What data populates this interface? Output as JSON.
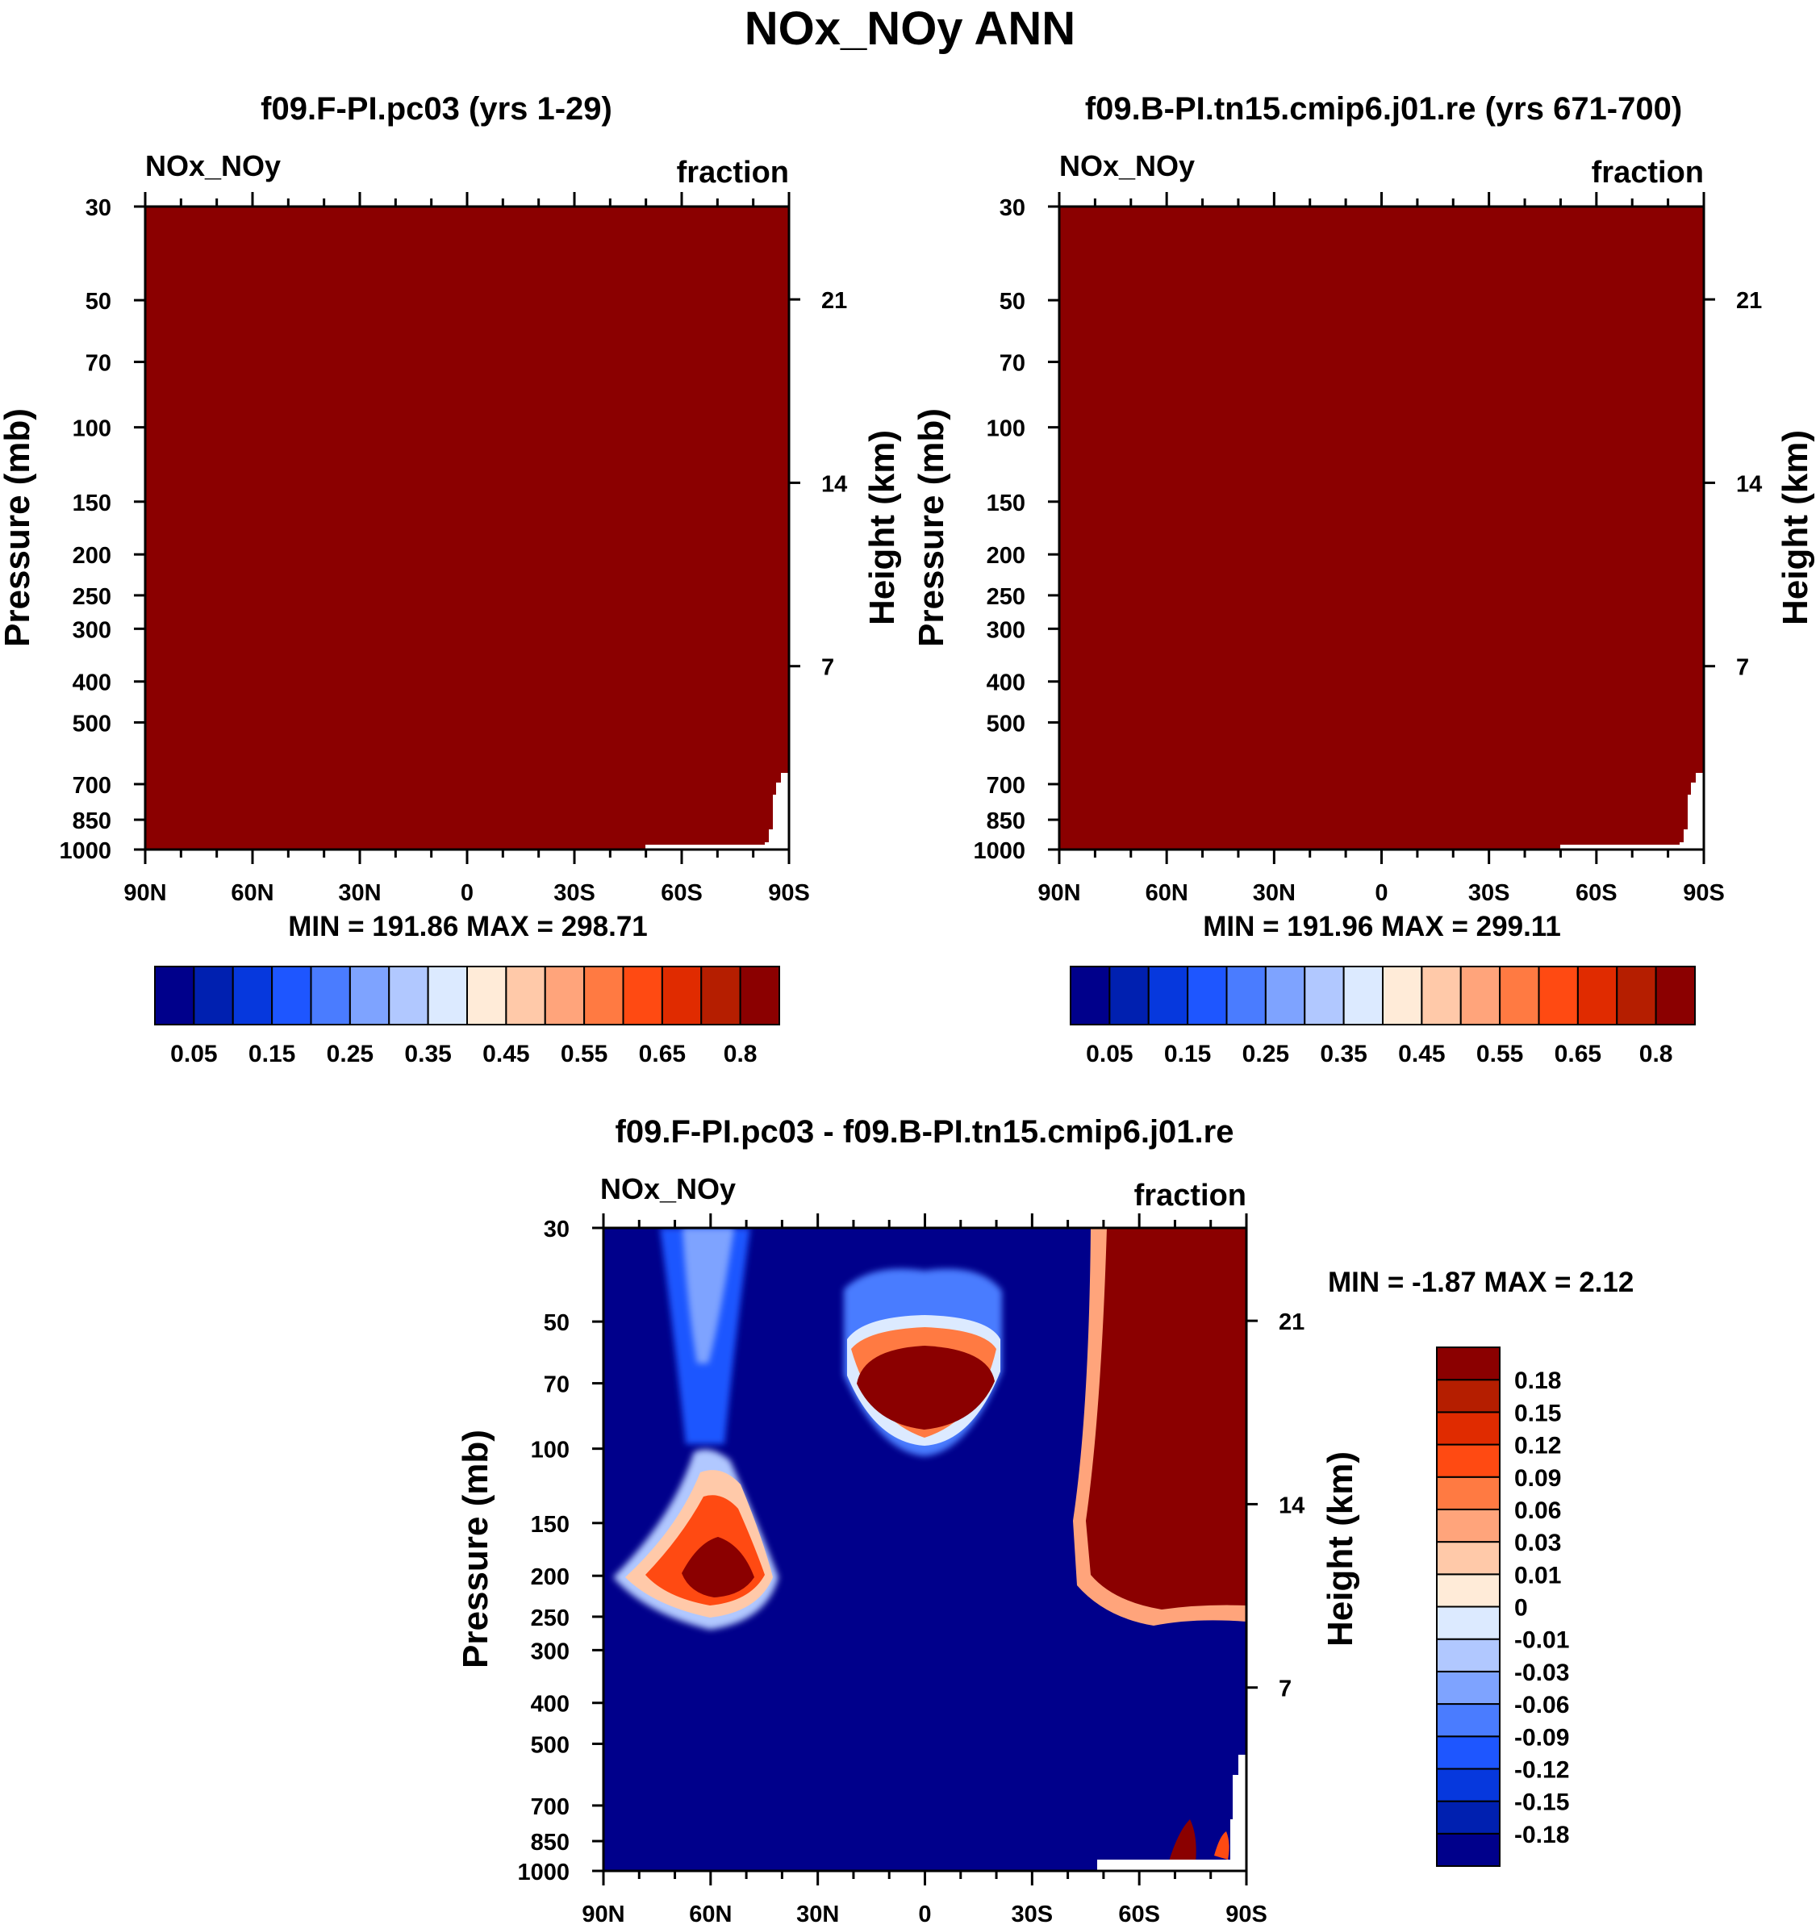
{
  "page_title": "NOx_NOy ANN",
  "colors": {
    "frame": "#000000",
    "background": "#ffffff",
    "dark_red": "#8b0000",
    "dark_blue": "#00008b"
  },
  "chart_data": [
    {
      "type": "heatmap",
      "id": "panel1",
      "title": "f09.F-PI.pc03 (yrs 1-29)",
      "left_label": "NOx_NOy",
      "right_label": "fraction",
      "ylabel": "Pressure (mb)",
      "y2label": "Height (km)",
      "x_ticks": [
        "90N",
        "60N",
        "30N",
        "0",
        "30S",
        "60S",
        "90S"
      ],
      "x_values": [
        90,
        60,
        30,
        0,
        -30,
        -60,
        -90
      ],
      "y_ticks": [
        30,
        50,
        70,
        100,
        150,
        200,
        250,
        300,
        400,
        500,
        700,
        850,
        1000
      ],
      "ylim": [
        1000,
        30
      ],
      "height_ticks_km": [
        21,
        14,
        7
      ],
      "fill": "uniform dark red (values above 0.8) except missing data near 90S surface",
      "stats": "MIN = 191.86  MAX = 298.71",
      "colorbar": {
        "orientation": "horizontal",
        "colors": [
          "#00008b",
          "#0020b0",
          "#0638dd",
          "#1e56ff",
          "#4a7cff",
          "#7ea3ff",
          "#b1c8ff",
          "#dceaff",
          "#ffebd8",
          "#ffc9a9",
          "#ffa47b",
          "#ff7a42",
          "#ff4a12",
          "#e02b00",
          "#b51e00",
          "#8b0000"
        ],
        "labels": [
          "0.05",
          "0.15",
          "0.25",
          "0.35",
          "0.45",
          "0.55",
          "0.65",
          "0.8"
        ]
      }
    },
    {
      "type": "heatmap",
      "id": "panel2",
      "title": "f09.B-PI.tn15.cmip6.j01.re (yrs 671-700)",
      "left_label": "NOx_NOy",
      "right_label": "fraction",
      "ylabel": "Pressure (mb)",
      "y2label": "Height (km)",
      "x_ticks": [
        "90N",
        "60N",
        "30N",
        "0",
        "30S",
        "60S",
        "90S"
      ],
      "x_values": [
        90,
        60,
        30,
        0,
        -30,
        -60,
        -90
      ],
      "y_ticks": [
        30,
        50,
        70,
        100,
        150,
        200,
        250,
        300,
        400,
        500,
        700,
        850,
        1000
      ],
      "ylim": [
        1000,
        30
      ],
      "height_ticks_km": [
        21,
        14,
        7
      ],
      "fill": "uniform dark red (values above 0.8) except missing data near 90S surface",
      "stats": "MIN = 191.96  MAX = 299.11",
      "colorbar": {
        "orientation": "horizontal",
        "colors": [
          "#00008b",
          "#0020b0",
          "#0638dd",
          "#1e56ff",
          "#4a7cff",
          "#7ea3ff",
          "#b1c8ff",
          "#dceaff",
          "#ffebd8",
          "#ffc9a9",
          "#ffa47b",
          "#ff7a42",
          "#ff4a12",
          "#e02b00",
          "#b51e00",
          "#8b0000"
        ],
        "labels": [
          "0.05",
          "0.15",
          "0.25",
          "0.35",
          "0.45",
          "0.55",
          "0.65",
          "0.8"
        ]
      }
    },
    {
      "type": "heatmap",
      "id": "panel3",
      "title": "f09.F-PI.pc03 - f09.B-PI.tn15.cmip6.j01.re",
      "left_label": "NOx_NOy",
      "right_label": "fraction",
      "ylabel": "Pressure (mb)",
      "y2label": "Height (km)",
      "x_ticks": [
        "90N",
        "60N",
        "30N",
        "0",
        "30S",
        "60S",
        "90S"
      ],
      "x_values": [
        90,
        60,
        30,
        0,
        -30,
        -60,
        -90
      ],
      "y_ticks": [
        30,
        50,
        70,
        100,
        150,
        200,
        250,
        300,
        400,
        500,
        700,
        850,
        1000
      ],
      "ylim": [
        1000,
        30
      ],
      "height_ticks_km": [
        21,
        14,
        7
      ],
      "stats": "MIN =  -1.87  MAX =   2.12",
      "features": [
        {
          "name": "positive blob",
          "lat_center": 0,
          "pressure_range_mb": [
            60,
            95
          ],
          "sign": "positive"
        },
        {
          "name": "positive wedge",
          "lat_range": [
            -90,
            -45
          ],
          "pressure_range_mb": [
            30,
            240
          ],
          "sign": "positive"
        },
        {
          "name": "positive lobe",
          "lat_center": 60,
          "pressure_range_mb": [
            120,
            240
          ],
          "sign": "positive"
        },
        {
          "name": "negative plume",
          "lat_center": 62,
          "pressure_range_mb": [
            30,
            120
          ],
          "sign": "negative"
        },
        {
          "name": "surface spots",
          "lat_range": [
            -90,
            -70
          ],
          "pressure_range_mb": [
            700,
            1000
          ],
          "sign": "positive"
        }
      ],
      "colorbar": {
        "orientation": "vertical",
        "colors": [
          "#00008b",
          "#0020b0",
          "#0638dd",
          "#1e56ff",
          "#4a7cff",
          "#7ea3ff",
          "#b1c8ff",
          "#dceaff",
          "#ffebd8",
          "#ffc9a9",
          "#ffa47b",
          "#ff7a42",
          "#ff4a12",
          "#e02b00",
          "#b51e00",
          "#8b0000"
        ],
        "labels": [
          "-0.18",
          "-0.15",
          "-0.12",
          "-0.09",
          "-0.06",
          "-0.03",
          "-0.01",
          "0",
          "0.01",
          "0.03",
          "0.06",
          "0.09",
          "0.12",
          "0.15",
          "0.18"
        ]
      }
    }
  ]
}
